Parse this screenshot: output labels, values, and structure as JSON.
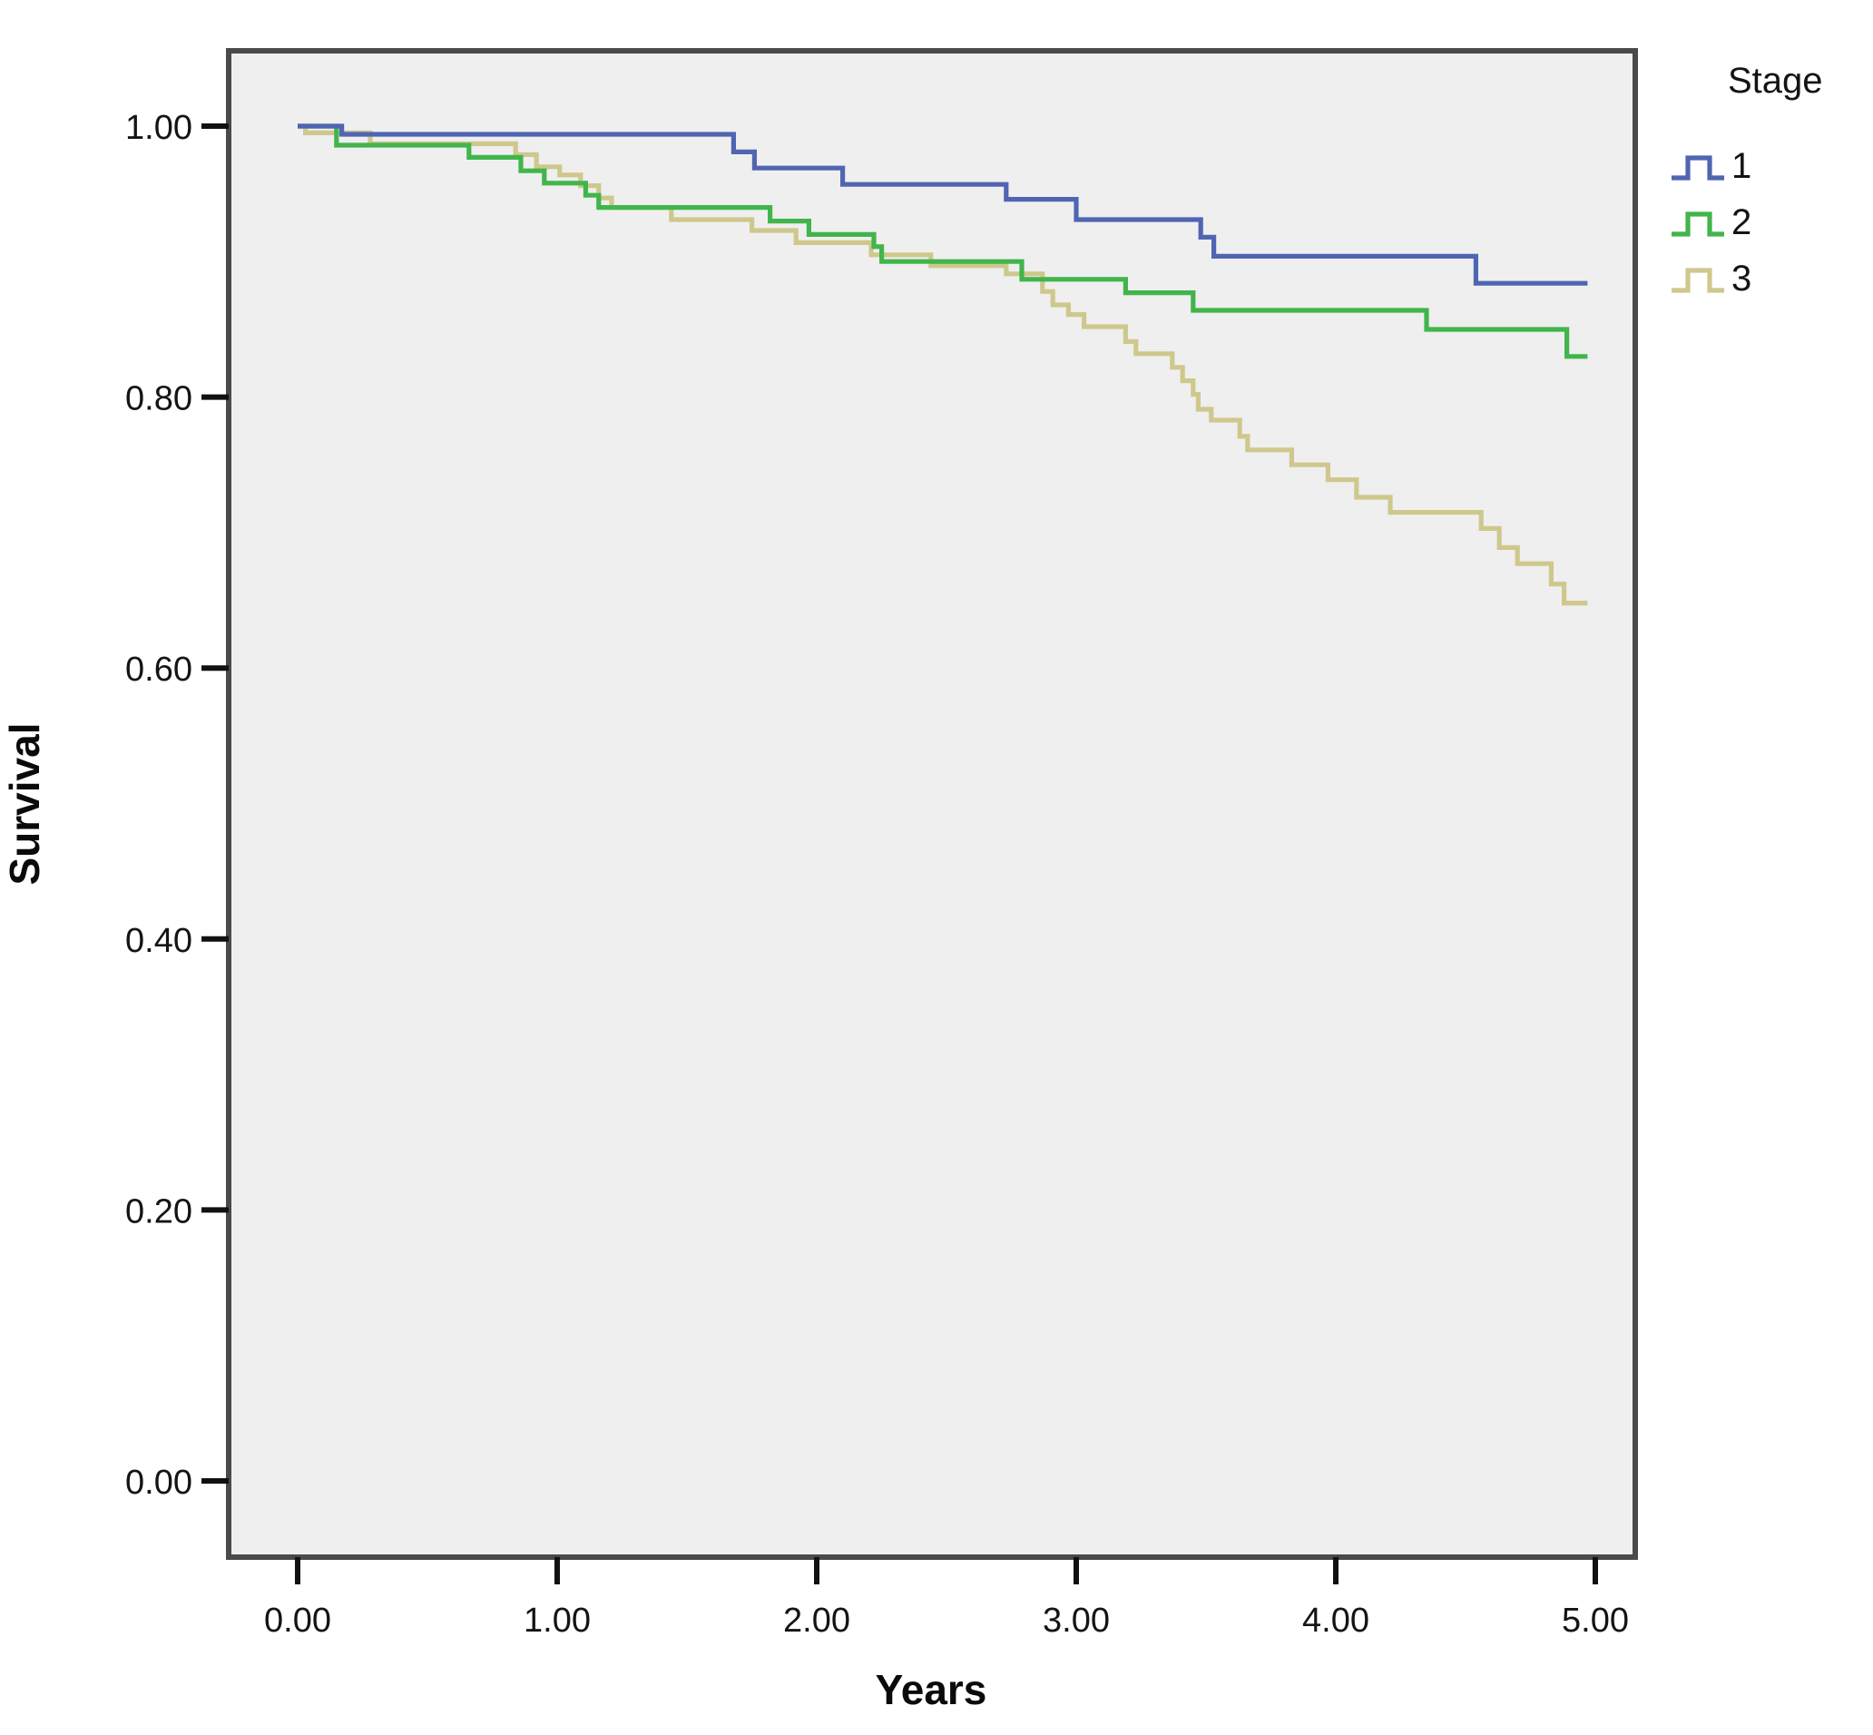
{
  "chart_data": {
    "type": "line",
    "subtype": "kaplan-meier-step-survival",
    "title": "",
    "xlabel": "Years",
    "ylabel": "Survival",
    "xlim": [
      -0.27,
      5.15
    ],
    "ylim": [
      -0.06,
      1.06
    ],
    "x_tick_labels": [
      "0.00",
      "1.00",
      "2.00",
      "3.00",
      "4.00",
      "5.00"
    ],
    "x_tick_values": [
      0,
      1,
      2,
      3,
      4,
      5
    ],
    "y_tick_labels": [
      "0.00",
      "0.20",
      "0.40",
      "0.60",
      "0.80",
      "1.00"
    ],
    "y_tick_values": [
      0,
      0.2,
      0.4,
      0.6,
      0.8,
      1.0
    ],
    "grid": false,
    "colors": {
      "plot_background": "#EFEFEF",
      "plot_border": "#4A4A4A",
      "tick": "#111111",
      "text": "#141414"
    },
    "legend": {
      "title": "Stage",
      "position": "top-right-outside"
    },
    "series": [
      {
        "name": "1",
        "stage": "Stage 1",
        "color": "#5065B2",
        "end_x": 4.97,
        "points": [
          [
            0.0,
            1.0
          ],
          [
            0.17,
            0.994
          ],
          [
            1.68,
            0.981
          ],
          [
            1.76,
            0.969
          ],
          [
            2.1,
            0.957
          ],
          [
            2.73,
            0.946
          ],
          [
            3.0,
            0.931
          ],
          [
            3.48,
            0.918
          ],
          [
            3.53,
            0.904
          ],
          [
            4.54,
            0.884
          ]
        ]
      },
      {
        "name": "2",
        "stage": "Stage 2",
        "color": "#41B54B",
        "end_x": 4.97,
        "points": [
          [
            0.0,
            1.0
          ],
          [
            0.15,
            0.986
          ],
          [
            0.66,
            0.977
          ],
          [
            0.86,
            0.967
          ],
          [
            0.95,
            0.958
          ],
          [
            1.11,
            0.949
          ],
          [
            1.16,
            0.94
          ],
          [
            1.82,
            0.93
          ],
          [
            1.97,
            0.92
          ],
          [
            2.22,
            0.911
          ],
          [
            2.25,
            0.9
          ],
          [
            2.79,
            0.887
          ],
          [
            3.19,
            0.877
          ],
          [
            3.45,
            0.864
          ],
          [
            4.35,
            0.85
          ],
          [
            4.89,
            0.83
          ]
        ]
      },
      {
        "name": "3",
        "stage": "Stage 3",
        "color": "#CFC88D",
        "end_x": 4.97,
        "points": [
          [
            0.0,
            1.0
          ],
          [
            0.03,
            0.995
          ],
          [
            0.28,
            0.987
          ],
          [
            0.84,
            0.979
          ],
          [
            0.92,
            0.97
          ],
          [
            1.01,
            0.964
          ],
          [
            1.09,
            0.956
          ],
          [
            1.16,
            0.947
          ],
          [
            1.21,
            0.94
          ],
          [
            1.44,
            0.931
          ],
          [
            1.75,
            0.923
          ],
          [
            1.92,
            0.914
          ],
          [
            2.21,
            0.905
          ],
          [
            2.44,
            0.897
          ],
          [
            2.73,
            0.891
          ],
          [
            2.87,
            0.878
          ],
          [
            2.91,
            0.868
          ],
          [
            2.97,
            0.861
          ],
          [
            3.03,
            0.852
          ],
          [
            3.19,
            0.841
          ],
          [
            3.23,
            0.832
          ],
          [
            3.37,
            0.822
          ],
          [
            3.41,
            0.812
          ],
          [
            3.45,
            0.802
          ],
          [
            3.47,
            0.791
          ],
          [
            3.52,
            0.783
          ],
          [
            3.63,
            0.771
          ],
          [
            3.66,
            0.761
          ],
          [
            3.83,
            0.75
          ],
          [
            3.97,
            0.739
          ],
          [
            4.08,
            0.726
          ],
          [
            4.21,
            0.715
          ],
          [
            4.56,
            0.703
          ],
          [
            4.63,
            0.689
          ],
          [
            4.7,
            0.677
          ],
          [
            4.83,
            0.662
          ],
          [
            4.88,
            0.648
          ]
        ]
      }
    ]
  }
}
